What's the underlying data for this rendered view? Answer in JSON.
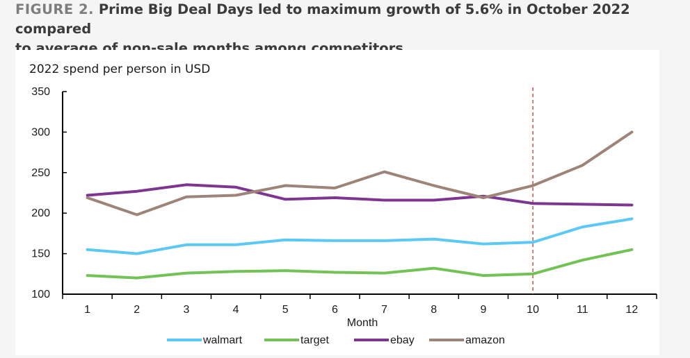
{
  "figure": {
    "label": "FIGURE 2.",
    "title_line1": "Prime Big Deal Days led to maximum growth of 5.6% in October 2022 compared",
    "title_line2": "to average of non-sale months among competitors"
  },
  "chart_data": {
    "type": "line",
    "title": "2022 spend per person in USD",
    "xlabel": "Month",
    "ylabel": "",
    "categories": [
      "1",
      "2",
      "3",
      "4",
      "5",
      "6",
      "7",
      "8",
      "9",
      "10",
      "11",
      "12"
    ],
    "ylim": [
      100,
      350
    ],
    "yticks": [
      100,
      150,
      200,
      250,
      300,
      350
    ],
    "grid": false,
    "marker_line": {
      "x": "10",
      "style": "dashed",
      "color": "#b02424"
    },
    "legend_position": "bottom",
    "series": [
      {
        "name": "walmart",
        "color": "#5bc8f5",
        "values": [
          155,
          150,
          161,
          161,
          167,
          166,
          166,
          168,
          162,
          164,
          183,
          193
        ]
      },
      {
        "name": "target",
        "color": "#72c256",
        "values": [
          123,
          120,
          126,
          128,
          129,
          127,
          126,
          132,
          123,
          125,
          142,
          155
        ]
      },
      {
        "name": "ebay",
        "color": "#7d3591",
        "values": [
          222,
          227,
          235,
          232,
          217,
          219,
          216,
          216,
          221,
          212,
          211,
          210
        ]
      },
      {
        "name": "amazon",
        "color": "#9e8477",
        "values": [
          219,
          198,
          220,
          222,
          234,
          231,
          251,
          234,
          219,
          234,
          259,
          300
        ]
      }
    ]
  }
}
